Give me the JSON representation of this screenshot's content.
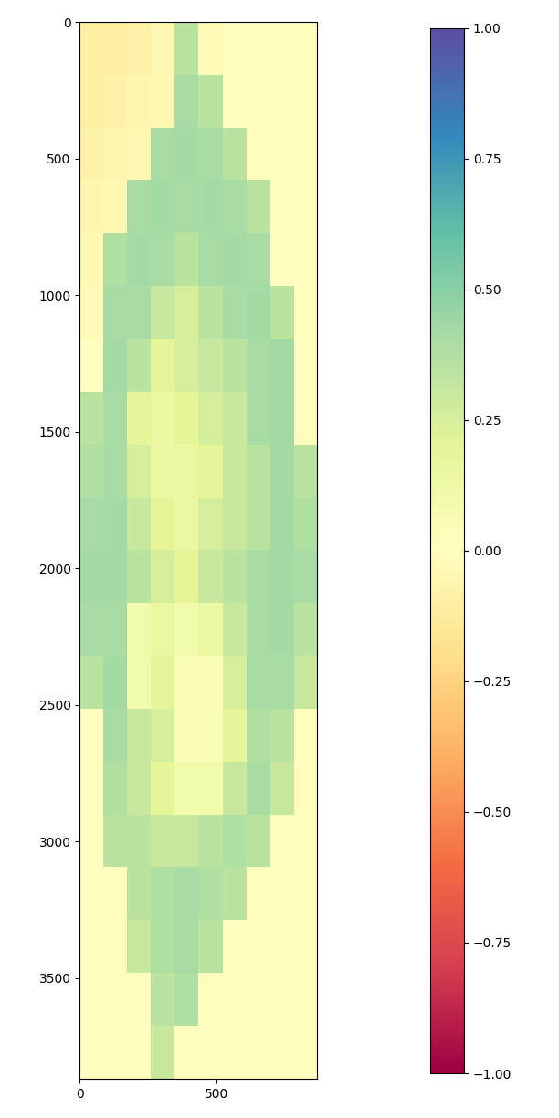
{
  "chart_data": {
    "type": "heatmap",
    "xlim": [
      0,
      870
    ],
    "ylim": [
      3870,
      0
    ],
    "xticks": [
      0,
      500
    ],
    "yticks": [
      0,
      500,
      1000,
      1500,
      2000,
      2500,
      3000,
      3500
    ],
    "cells": [
      [
        -0.1,
        -0.1,
        -0.08,
        -0.05,
        0.35,
        -0.03,
        0,
        0,
        0,
        0
      ],
      [
        -0.1,
        -0.08,
        -0.06,
        -0.04,
        0.4,
        0.35,
        0,
        0,
        0,
        0
      ],
      [
        -0.08,
        -0.06,
        -0.04,
        0.4,
        0.42,
        0.4,
        0.35,
        0,
        0,
        0
      ],
      [
        -0.06,
        -0.04,
        0.4,
        0.42,
        0.4,
        0.42,
        0.4,
        0.35,
        0,
        0
      ],
      [
        -0.04,
        0.38,
        0.42,
        0.4,
        0.35,
        0.4,
        0.42,
        0.4,
        0,
        0
      ],
      [
        -0.02,
        0.4,
        0.4,
        0.3,
        0.25,
        0.35,
        0.4,
        0.42,
        0.35,
        0
      ],
      [
        0,
        0.42,
        0.35,
        0.2,
        0.25,
        0.3,
        0.35,
        0.4,
        0.42,
        0
      ],
      [
        0.35,
        0.4,
        0.2,
        0.15,
        0.2,
        0.25,
        0.3,
        0.4,
        0.42,
        0
      ],
      [
        0.38,
        0.4,
        0.25,
        0.15,
        0.15,
        0.2,
        0.3,
        0.35,
        0.42,
        0.35
      ],
      [
        0.4,
        0.42,
        0.3,
        0.2,
        0.15,
        0.25,
        0.3,
        0.35,
        0.42,
        0.38
      ],
      [
        0.42,
        0.42,
        0.35,
        0.25,
        0.2,
        0.3,
        0.35,
        0.4,
        0.42,
        0.4
      ],
      [
        0.4,
        0.4,
        0.1,
        0.15,
        0.1,
        0.15,
        0.3,
        0.4,
        0.42,
        0.35
      ],
      [
        0.35,
        0.42,
        0.1,
        0.2,
        0.05,
        0.05,
        0.25,
        0.4,
        0.4,
        0.3
      ],
      [
        0,
        0.4,
        0.3,
        0.25,
        0.05,
        0.05,
        0.2,
        0.38,
        0.35,
        0
      ],
      [
        0,
        0.38,
        0.3,
        0.2,
        0.1,
        0.1,
        0.3,
        0.4,
        0.3,
        0
      ],
      [
        0,
        0.35,
        0.35,
        0.3,
        0.3,
        0.35,
        0.38,
        0.35,
        0,
        0
      ],
      [
        0,
        0,
        0.35,
        0.38,
        0.4,
        0.38,
        0.35,
        0,
        0,
        0
      ],
      [
        0,
        0,
        0.3,
        0.38,
        0.4,
        0.35,
        0,
        0,
        0,
        0
      ],
      [
        0,
        0,
        0,
        0.35,
        0.38,
        0,
        0,
        0,
        0,
        0
      ],
      [
        0,
        0,
        0,
        0.3,
        0,
        0,
        0,
        0,
        0,
        0
      ]
    ],
    "colorbar": {
      "range": [
        -1,
        1
      ],
      "ticks": [
        {
          "value": -1,
          "label": "−1.00"
        },
        {
          "value": -0.75,
          "label": "−0.75"
        },
        {
          "value": -0.5,
          "label": "−0.50"
        },
        {
          "value": -0.25,
          "label": "−0.25"
        },
        {
          "value": 0,
          "label": "0.00"
        },
        {
          "value": 0.25,
          "label": "0.25"
        },
        {
          "value": 0.5,
          "label": "0.50"
        },
        {
          "value": 0.75,
          "label": "0.75"
        },
        {
          "value": 1,
          "label": "1.00"
        }
      ]
    }
  }
}
